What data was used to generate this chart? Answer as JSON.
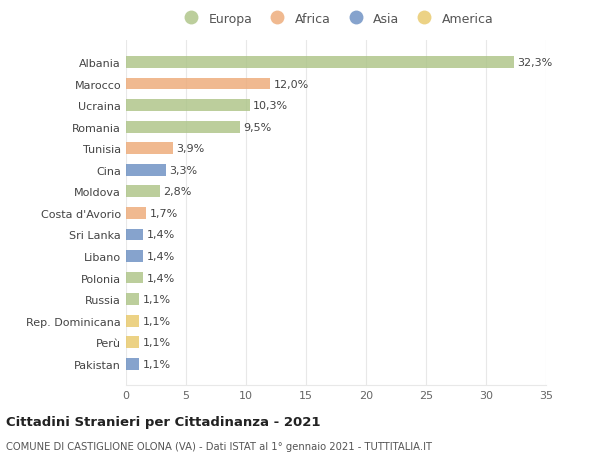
{
  "categories": [
    "Albania",
    "Marocco",
    "Ucraina",
    "Romania",
    "Tunisia",
    "Cina",
    "Moldova",
    "Costa d'Avorio",
    "Sri Lanka",
    "Libano",
    "Polonia",
    "Russia",
    "Rep. Dominicana",
    "Perù",
    "Pakistan"
  ],
  "values": [
    32.3,
    12.0,
    10.3,
    9.5,
    3.9,
    3.3,
    2.8,
    1.7,
    1.4,
    1.4,
    1.4,
    1.1,
    1.1,
    1.1,
    1.1
  ],
  "labels": [
    "32,3%",
    "12,0%",
    "10,3%",
    "9,5%",
    "3,9%",
    "3,3%",
    "2,8%",
    "1,7%",
    "1,4%",
    "1,4%",
    "1,4%",
    "1,1%",
    "1,1%",
    "1,1%",
    "1,1%"
  ],
  "continents": [
    "Europa",
    "Africa",
    "Europa",
    "Europa",
    "Africa",
    "Asia",
    "Europa",
    "Africa",
    "Asia",
    "Asia",
    "Europa",
    "Europa",
    "America",
    "America",
    "Asia"
  ],
  "colors": {
    "Europa": "#adc487",
    "Africa": "#edaa78",
    "Asia": "#6b8fc2",
    "America": "#e8c96a"
  },
  "legend_order": [
    "Europa",
    "Africa",
    "Asia",
    "America"
  ],
  "xlim": [
    0,
    35
  ],
  "xticks": [
    0,
    5,
    10,
    15,
    20,
    25,
    30,
    35
  ],
  "title": "Cittadini Stranieri per Cittadinanza - 2021",
  "subtitle": "COMUNE DI CASTIGLIONE OLONA (VA) - Dati ISTAT al 1° gennaio 2021 - TUTTITALIA.IT",
  "bg_color": "#ffffff",
  "grid_color": "#e8e8e8",
  "bar_height": 0.55,
  "label_fontsize": 8.0,
  "ytick_fontsize": 8.0,
  "xtick_fontsize": 8.0
}
